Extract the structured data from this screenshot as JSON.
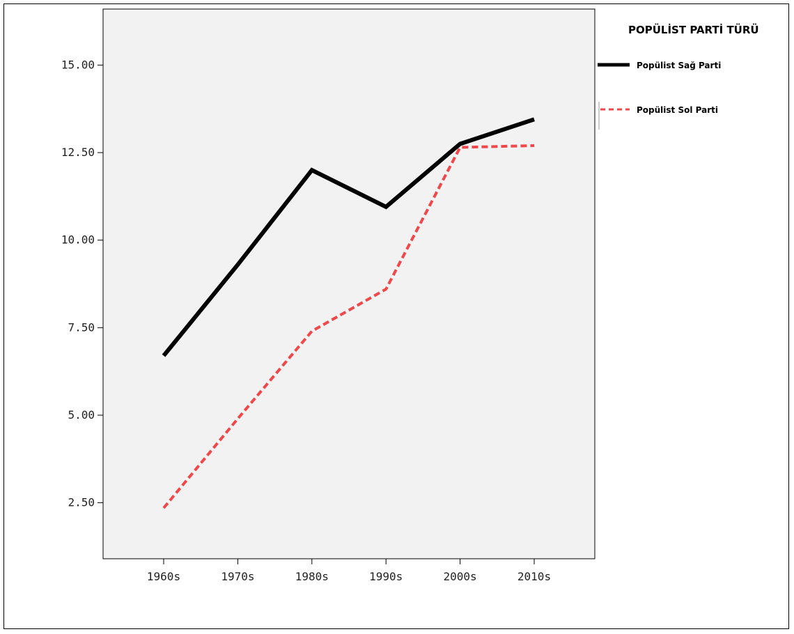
{
  "chart_data": {
    "type": "line",
    "title": "",
    "xlabel": "",
    "ylabel": "",
    "categories": [
      "1960s",
      "1970s",
      "1980s",
      "1990s",
      "2000s",
      "2010s"
    ],
    "ylim": [
      0.9,
      16.6
    ],
    "yticks": [
      "2.50",
      "5.00",
      "7.50",
      "10.00",
      "12.50",
      "15.00"
    ],
    "ytick_values": [
      2.5,
      5.0,
      7.5,
      10.0,
      12.5,
      15.0
    ],
    "series": [
      {
        "name": "Popülist Sağ Parti",
        "values": [
          6.7,
          9.3,
          12.0,
          10.95,
          12.75,
          13.45
        ],
        "color": "#000000",
        "style": "solid"
      },
      {
        "name": "Popülist Sol Parti",
        "values": [
          2.35,
          4.9,
          7.4,
          8.6,
          12.65,
          12.7
        ],
        "color": "#f0484a",
        "style": "dashed"
      }
    ],
    "legend": {
      "title": "POPÜLİST PARTİ TÜRÜ",
      "placement": "right"
    },
    "grid": false,
    "plot_background": "#f2f2f2"
  }
}
